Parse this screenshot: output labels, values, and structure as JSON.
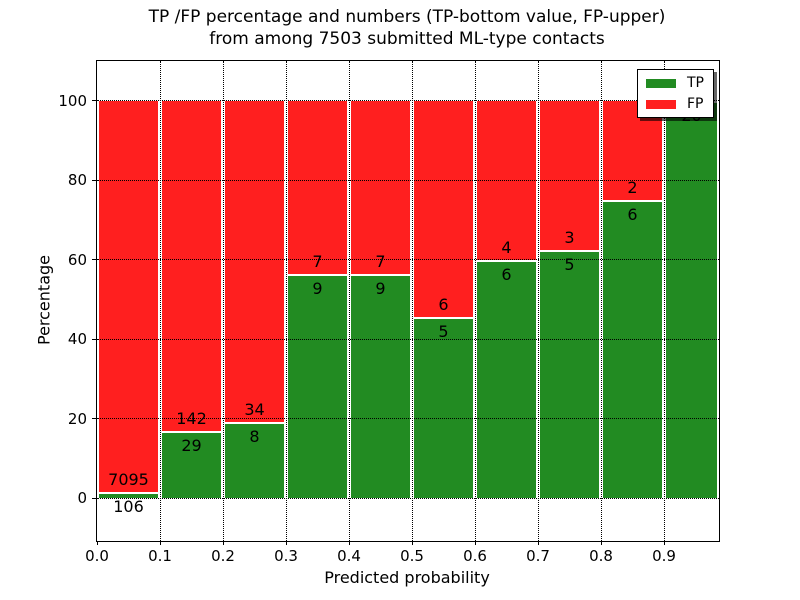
{
  "chart_data": {
    "type": "bar",
    "variant": "stacked-percentage",
    "title_lines": [
      "TP /FP percentage and numbers (TP-bottom value, FP-upper)",
      "from among 7503 submitted ML-type contacts"
    ],
    "xlabel": "Predicted probability",
    "ylabel": "Percentage",
    "total_contacts": 7503,
    "bin_width": 0.1,
    "categories": [
      "0.0-0.1",
      "0.1-0.2",
      "0.2-0.3",
      "0.3-0.4",
      "0.4-0.5",
      "0.5-0.6",
      "0.6-0.7",
      "0.7-0.8",
      "0.8-0.9",
      "0.9-1.0"
    ],
    "series": [
      {
        "name": "TP",
        "color": "#228b22",
        "counts": [
          106,
          29,
          8,
          9,
          9,
          5,
          6,
          5,
          6,
          20
        ]
      },
      {
        "name": "FP",
        "color": "#ff1f1f",
        "counts": [
          7095,
          142,
          34,
          7,
          7,
          6,
          4,
          3,
          2,
          0
        ]
      }
    ],
    "tp_percent_heights": [
      1.47,
      16.96,
      19.05,
      56.25,
      56.25,
      45.45,
      60.0,
      62.5,
      75.0,
      100.0
    ],
    "xticks": [
      "0.0",
      "0.1",
      "0.2",
      "0.3",
      "0.4",
      "0.5",
      "0.6",
      "0.7",
      "0.8",
      "0.9"
    ],
    "yticks": [
      0,
      20,
      40,
      60,
      80,
      100
    ],
    "ylim": [
      0,
      100
    ],
    "grid": "dotted",
    "legend": {
      "position": "upper-right",
      "items": [
        {
          "label": "TP",
          "color": "#228b22"
        },
        {
          "label": "FP",
          "color": "#ff1f1f"
        }
      ]
    }
  }
}
